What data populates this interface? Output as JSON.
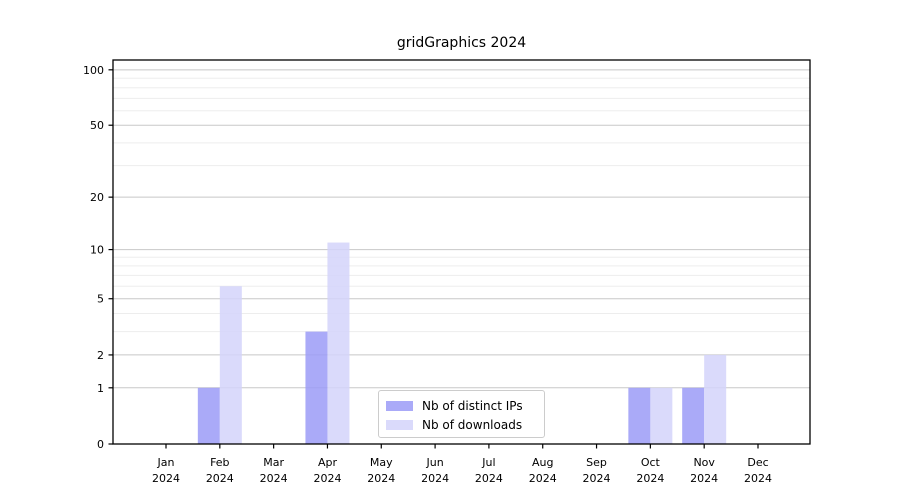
{
  "chart_data": {
    "type": "bar",
    "title": "gridGraphics 2024",
    "categories": [
      "Jan",
      "Feb",
      "Mar",
      "Apr",
      "May",
      "Jun",
      "Jul",
      "Aug",
      "Sep",
      "Oct",
      "Nov",
      "Dec"
    ],
    "category_year": "2024",
    "series": [
      {
        "name": "Nb of distinct IPs",
        "color": "#9b9bf7",
        "values": [
          0,
          1,
          0,
          3,
          0,
          0,
          0,
          0,
          0,
          1,
          1,
          0
        ]
      },
      {
        "name": "Nb of downloads",
        "color": "#d3d3fa",
        "values": [
          0,
          6,
          0,
          11,
          0,
          0,
          0,
          0,
          0,
          1,
          2,
          0
        ]
      }
    ],
    "xlabel": "",
    "ylabel": "",
    "yscale": "log1p",
    "ylim": [
      0,
      113
    ],
    "yticks": [
      0,
      1,
      2,
      5,
      10,
      20,
      50,
      100
    ],
    "minor_yticks": [
      3,
      4,
      6,
      7,
      8,
      9,
      30,
      40,
      60,
      70,
      80,
      90
    ],
    "grid": true,
    "legend_position": "lower center",
    "colors": {
      "background": "#ffffff",
      "major_grid": "#c8c8c8",
      "minor_grid": "#ededed",
      "axis": "#000000",
      "text": "#000000"
    }
  }
}
